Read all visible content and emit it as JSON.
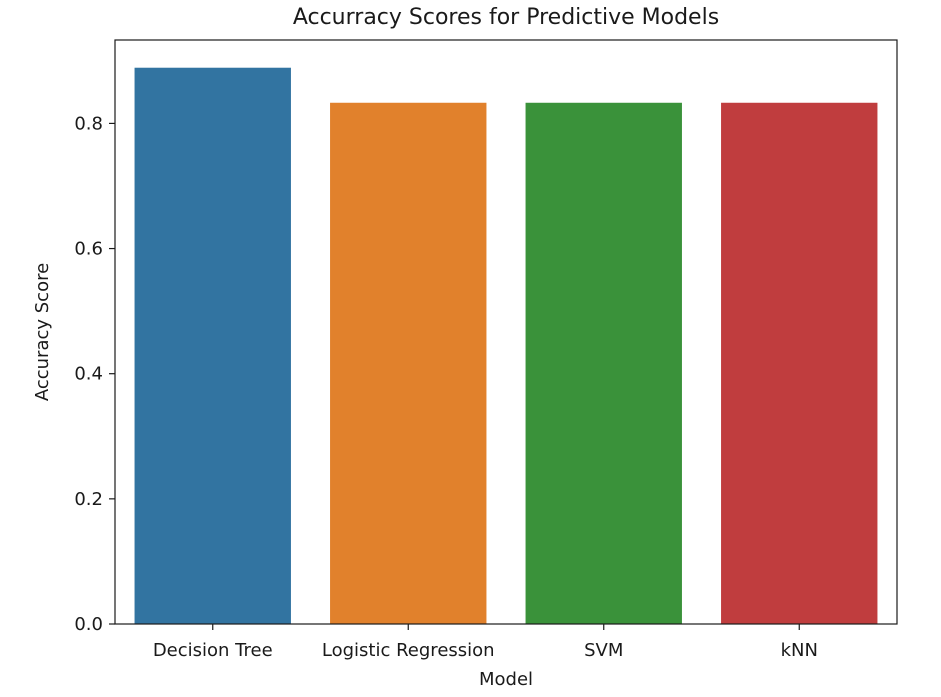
{
  "chart_data": {
    "type": "bar",
    "title": "Accurracy Scores for Predictive Models",
    "xlabel": "Model",
    "ylabel": "Accuracy Score",
    "categories": [
      "Decision Tree",
      "Logistic Regression",
      "SVM",
      "kNN"
    ],
    "values": [
      0.889,
      0.833,
      0.833,
      0.833
    ],
    "colors": [
      "#3274a1",
      "#e1812c",
      "#3a923a",
      "#c03d3e"
    ],
    "ylim": [
      0,
      0.9333
    ],
    "yticks": [
      0.0,
      0.2,
      0.4,
      0.6,
      0.8
    ],
    "ytick_labels": [
      "0.0",
      "0.2",
      "0.4",
      "0.6",
      "0.8"
    ],
    "grid": false,
    "legend": "none"
  }
}
